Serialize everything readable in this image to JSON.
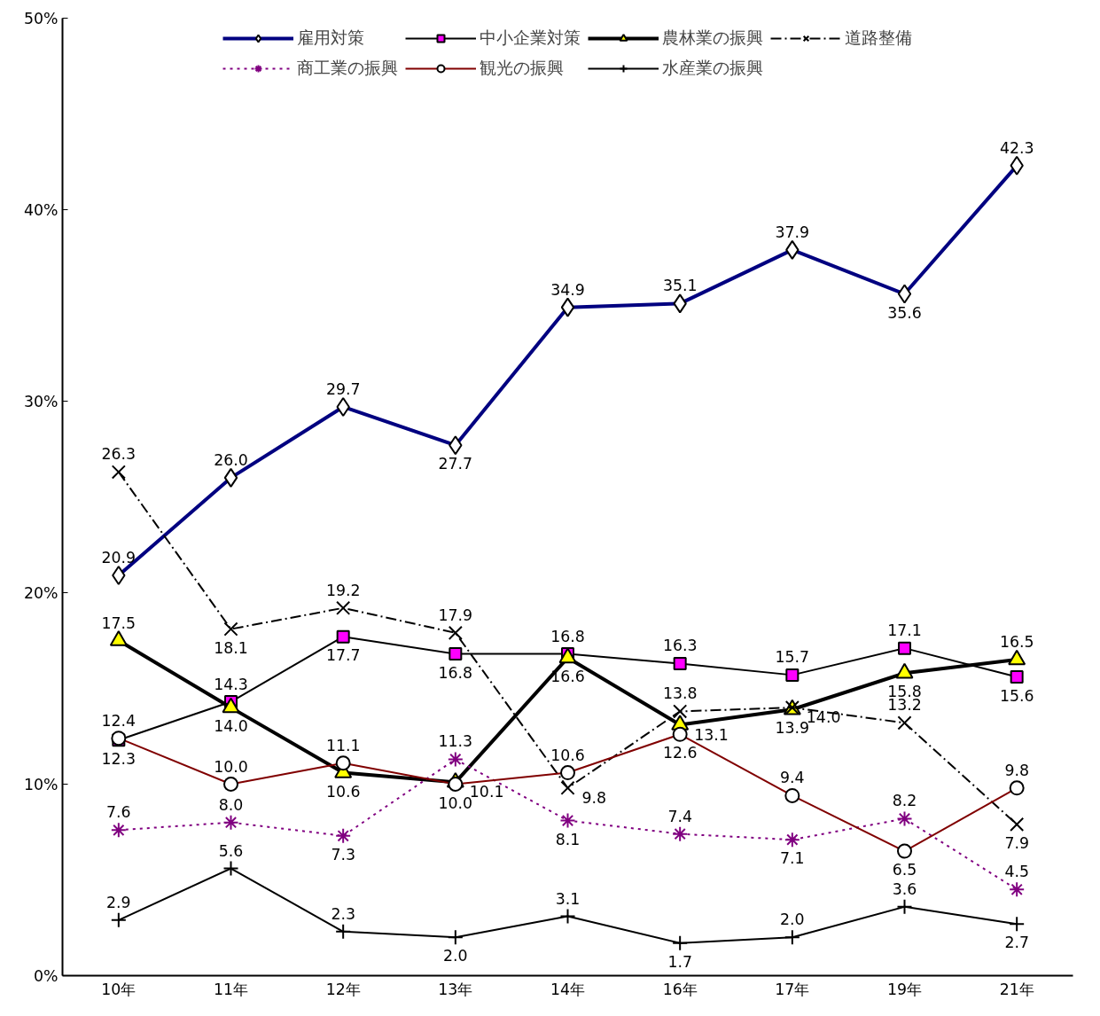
{
  "chart_data": {
    "type": "line",
    "categories": [
      "10年",
      "11年",
      "12年",
      "13年",
      "14年",
      "16年",
      "17年",
      "19年",
      "21年"
    ],
    "ylim": [
      0,
      50
    ],
    "yticks": [
      {
        "value": 0,
        "label": "0%"
      },
      {
        "value": 10,
        "label": "10%"
      },
      {
        "value": 20,
        "label": "20%"
      },
      {
        "value": 30,
        "label": "30%"
      },
      {
        "value": 40,
        "label": "40%"
      },
      {
        "value": 50,
        "label": "50%"
      }
    ],
    "grid": false,
    "legend": "top",
    "series": [
      {
        "name": "雇用対策",
        "color": "#000080",
        "marker": "diamond",
        "line_style": "solid",
        "values": [
          20.9,
          26.0,
          29.7,
          27.7,
          34.9,
          35.1,
          37.9,
          35.6,
          42.3
        ],
        "value_labels": [
          "20.9",
          "26.0",
          "29.7",
          "27.7",
          "34.9",
          "35.1",
          "37.9",
          "35.6",
          "42.3"
        ]
      },
      {
        "name": "中小企業対策",
        "color": "#000000",
        "marker": "square",
        "line_style": "solid",
        "values": [
          12.3,
          14.3,
          17.7,
          16.8,
          16.8,
          16.3,
          15.7,
          17.1,
          15.6
        ],
        "value_labels": [
          "12.3",
          "14.3",
          "17.7",
          "16.8",
          "16.8",
          "16.3",
          "15.7",
          "17.1",
          "15.6"
        ]
      },
      {
        "name": "農林業の振興",
        "color": "#000000",
        "marker": "triangle",
        "line_style": "solid",
        "values": [
          17.5,
          14.0,
          10.6,
          10.1,
          16.6,
          13.1,
          13.9,
          15.8,
          16.5
        ],
        "value_labels": [
          "17.5",
          "14.0",
          "10.6",
          "10.1",
          "16.6",
          "13.1",
          "13.9",
          "15.8",
          "16.5"
        ]
      },
      {
        "name": "道路整備",
        "color": "#000000",
        "marker": "x",
        "line_style": "dashed",
        "values": [
          26.3,
          18.1,
          19.2,
          17.9,
          9.8,
          13.8,
          14.0,
          13.2,
          7.9
        ],
        "value_labels": [
          "26.3",
          "18.1",
          "19.2",
          "17.9",
          "9.8",
          "13.8",
          "14.0",
          "13.2",
          "7.9"
        ]
      },
      {
        "name": "商工業の振興",
        "color": "#800080",
        "marker": "cross",
        "line_style": "dotted",
        "values": [
          7.6,
          8.0,
          7.3,
          11.3,
          8.1,
          7.4,
          7.1,
          8.2,
          4.5
        ],
        "value_labels": [
          "7.6",
          "8.0",
          "7.3",
          "11.3",
          "8.1",
          "7.4",
          "7.1",
          "8.2",
          "4.5"
        ]
      },
      {
        "name": "観光の振興",
        "color": "#800000",
        "marker": "circle",
        "line_style": "solid",
        "values": [
          12.4,
          10.0,
          11.1,
          10.0,
          10.6,
          12.6,
          9.4,
          6.5,
          9.8
        ],
        "value_labels": [
          "12.4",
          "10.0",
          "11.1",
          "10.0",
          "10.6",
          "12.6",
          "9.4",
          "6.5",
          "9.8"
        ]
      },
      {
        "name": "水産業の振興",
        "color": "#000000",
        "marker": "cross",
        "line_style": "solid",
        "values": [
          2.9,
          5.6,
          2.3,
          2.0,
          3.1,
          1.7,
          2.0,
          3.6,
          2.7
        ],
        "value_labels": [
          "2.9",
          "5.6",
          "2.3",
          "2.0",
          "3.1",
          "1.7",
          "2.0",
          "3.6",
          "2.7"
        ]
      }
    ]
  }
}
